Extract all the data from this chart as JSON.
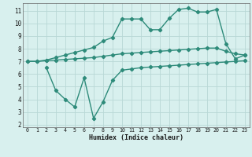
{
  "line1_x": [
    0,
    1,
    2,
    3,
    4,
    5,
    6,
    7,
    8,
    9,
    10,
    11,
    12,
    13,
    14,
    15,
    16,
    17,
    18,
    19,
    20,
    21,
    22,
    23
  ],
  "line1_y": [
    7.0,
    7.0,
    7.1,
    7.3,
    7.5,
    7.7,
    7.9,
    8.1,
    8.6,
    8.9,
    10.35,
    10.35,
    10.35,
    9.5,
    9.5,
    10.4,
    11.1,
    11.2,
    10.9,
    10.9,
    11.1,
    8.4,
    7.2,
    7.5
  ],
  "line2_x": [
    0,
    1,
    2,
    3,
    4,
    5,
    6,
    7,
    8,
    9,
    10,
    11,
    12,
    13,
    14,
    15,
    16,
    17,
    18,
    19,
    20,
    21,
    22,
    23
  ],
  "line2_y": [
    7.0,
    7.0,
    7.05,
    7.1,
    7.15,
    7.2,
    7.25,
    7.3,
    7.4,
    7.5,
    7.6,
    7.65,
    7.7,
    7.75,
    7.8,
    7.85,
    7.9,
    7.95,
    8.0,
    8.05,
    8.05,
    7.8,
    7.6,
    7.5
  ],
  "line3_x": [
    2,
    3,
    4,
    5,
    6,
    7,
    8,
    9,
    10,
    11,
    12,
    13,
    14,
    15,
    16,
    17,
    18,
    19,
    20,
    21,
    22,
    23
  ],
  "line3_y": [
    6.5,
    4.7,
    4.0,
    3.4,
    5.7,
    2.5,
    3.8,
    5.5,
    6.3,
    6.4,
    6.5,
    6.55,
    6.6,
    6.65,
    6.7,
    6.75,
    6.8,
    6.85,
    6.9,
    6.95,
    7.0,
    7.05
  ],
  "color": "#2e8b7a",
  "bg_color": "#d8f0ee",
  "grid_color": "#b8d8d6",
  "xlabel": "Humidex (Indice chaleur)",
  "xlim": [
    -0.5,
    23.5
  ],
  "ylim": [
    1.8,
    11.6
  ],
  "xticks": [
    0,
    1,
    2,
    3,
    4,
    5,
    6,
    7,
    8,
    9,
    10,
    11,
    12,
    13,
    14,
    15,
    16,
    17,
    18,
    19,
    20,
    21,
    22,
    23
  ],
  "yticks": [
    2,
    3,
    4,
    5,
    6,
    7,
    8,
    9,
    10,
    11
  ],
  "marker": "D",
  "markersize": 2.2,
  "linewidth": 1.0
}
